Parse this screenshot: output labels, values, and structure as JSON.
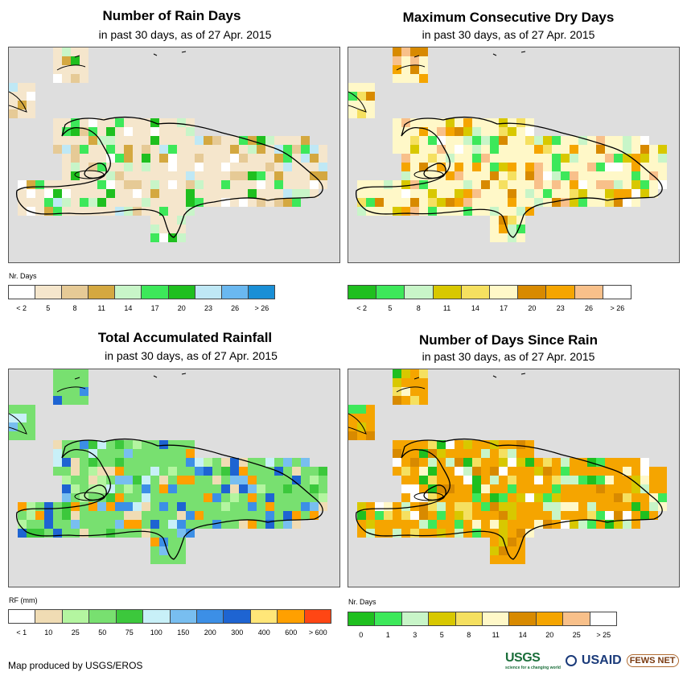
{
  "panels": [
    {
      "title": "Number of Rain Days",
      "subtitle": "in past 30 days, as of 27 Apr. 2015",
      "legend_unit": "Nr. Days",
      "legend_colors": [
        "#ffffff",
        "#f5e6cc",
        "#e6ca96",
        "#d4a840",
        "#c8f5c8",
        "#3de85a",
        "#1fbf1f",
        "#bfe8f5",
        "#6ab8f0",
        "#1a8fd6"
      ],
      "legend_labels": [
        "< 2",
        "5",
        "8",
        "11",
        "14",
        "17",
        "20",
        "23",
        "26",
        "> 26"
      ],
      "base_color": "#f5e6cc",
      "accent_colors": [
        "#e6ca96",
        "#d4a840",
        "#ffffff",
        "#c8f5c8",
        "#3de85a",
        "#1fbf1f",
        "#bfe8f5"
      ]
    },
    {
      "title": "Maximum Consecutive Dry Days",
      "subtitle": "in past 30 days, as of 27 Apr. 2015",
      "legend_unit": "",
      "legend_colors": [
        "#1fbf1f",
        "#3de85a",
        "#c8f5c8",
        "#d8c800",
        "#f5e060",
        "#fff8c8",
        "#d88a00",
        "#f5a500",
        "#f8c08a",
        "#ffffff"
      ],
      "legend_labels": [
        "< 2",
        "5",
        "8",
        "11",
        "14",
        "17",
        "20",
        "23",
        "26",
        "> 26"
      ],
      "base_color": "#fff8c8",
      "accent_colors": [
        "#d8c800",
        "#f5e060",
        "#d88a00",
        "#f5a500",
        "#f8c08a",
        "#3de85a",
        "#c8f5c8",
        "#ffffff"
      ]
    },
    {
      "title": "Total Accumulated Rainfall",
      "subtitle": "in past 30 days, as of 27 Apr. 2015",
      "legend_unit": "RF (mm)",
      "legend_colors": [
        "#ffffff",
        "#f0dcb4",
        "#b4f5a0",
        "#78e070",
        "#3cc83c",
        "#c8f0f8",
        "#78bef0",
        "#3c8fe6",
        "#1e64d2",
        "#ffe678",
        "#ffa000",
        "#ff4614"
      ],
      "legend_labels": [
        "< 1",
        "10",
        "25",
        "50",
        "75",
        "100",
        "150",
        "200",
        "300",
        "400",
        "600",
        "> 600"
      ],
      "base_color": "#78e070",
      "accent_colors": [
        "#3cc83c",
        "#b4f5a0",
        "#f0dcb4",
        "#c8f0f8",
        "#78bef0",
        "#3c8fe6",
        "#1e64d2",
        "#ffa000"
      ]
    },
    {
      "title": "Number of Days Since Rain",
      "subtitle": "in past 30 days, as of 27 Apr. 2015",
      "legend_unit": "Nr. Days",
      "legend_colors": [
        "#1fbf1f",
        "#3de85a",
        "#c8f5c8",
        "#d8c800",
        "#f5e060",
        "#fff8c8",
        "#d88a00",
        "#f5a500",
        "#f8c08a",
        "#ffffff"
      ],
      "legend_labels": [
        "0",
        "1",
        "3",
        "5",
        "8",
        "11",
        "14",
        "20",
        "25",
        "> 25"
      ],
      "base_color": "#f5a500",
      "accent_colors": [
        "#d88a00",
        "#f5e060",
        "#fff8c8",
        "#d8c800",
        "#1fbf1f",
        "#3de85a",
        "#c8f5c8",
        "#ffffff"
      ]
    }
  ],
  "footer": "Map produced by USGS/EROS",
  "logos": {
    "usgs": "USGS",
    "usgs_tagline": "science for a changing world",
    "usaid": "USAID",
    "fews": "FEWS NET"
  }
}
